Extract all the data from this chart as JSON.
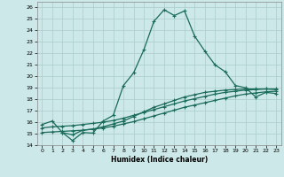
{
  "xlabel": "Humidex (Indice chaleur)",
  "background_color": "#cce8e8",
  "grid_color": "#aacccc",
  "line_color": "#1a6b5a",
  "xlim": [
    -0.5,
    23.5
  ],
  "ylim": [
    14,
    26.5
  ],
  "xticks": [
    0,
    1,
    2,
    3,
    4,
    5,
    6,
    7,
    8,
    9,
    10,
    11,
    12,
    13,
    14,
    15,
    16,
    17,
    18,
    19,
    20,
    21,
    22,
    23
  ],
  "yticks": [
    14,
    15,
    16,
    17,
    18,
    19,
    20,
    21,
    22,
    23,
    24,
    25,
    26
  ],
  "line1_x": [
    0,
    1,
    2,
    3,
    4,
    5,
    6,
    7,
    8,
    9,
    10,
    11,
    12,
    13,
    14,
    15,
    16,
    17,
    18,
    19,
    20,
    21,
    22,
    23
  ],
  "line1_y": [
    15.8,
    16.1,
    15.1,
    14.4,
    15.1,
    15.05,
    16.1,
    16.6,
    19.2,
    20.3,
    22.3,
    24.8,
    25.8,
    25.3,
    25.7,
    23.5,
    22.2,
    21.0,
    20.4,
    19.2,
    19.0,
    18.2,
    18.6,
    18.5
  ],
  "line2_x": [
    2,
    3,
    4,
    5,
    6,
    7,
    8,
    9,
    10,
    11,
    12,
    13,
    14,
    15,
    16,
    17,
    18,
    19,
    20,
    21,
    22,
    23
  ],
  "line2_y": [
    15.1,
    14.9,
    15.3,
    15.4,
    15.6,
    15.85,
    16.1,
    16.5,
    16.9,
    17.3,
    17.6,
    17.9,
    18.2,
    18.4,
    18.6,
    18.7,
    18.8,
    18.85,
    18.9,
    18.9,
    18.9,
    18.85
  ],
  "line3_x": [
    0,
    1,
    2,
    3,
    4,
    5,
    6,
    7,
    8,
    9,
    10,
    11,
    12,
    13,
    14,
    15,
    16,
    17,
    18,
    19,
    20,
    21,
    22,
    23
  ],
  "line3_y": [
    15.5,
    15.6,
    15.65,
    15.7,
    15.8,
    15.9,
    16.0,
    16.15,
    16.35,
    16.6,
    16.85,
    17.1,
    17.35,
    17.6,
    17.85,
    18.05,
    18.25,
    18.45,
    18.6,
    18.7,
    18.8,
    18.85,
    18.9,
    18.9
  ],
  "line4_x": [
    0,
    1,
    2,
    3,
    4,
    5,
    6,
    7,
    8,
    9,
    10,
    11,
    12,
    13,
    14,
    15,
    16,
    17,
    18,
    19,
    20,
    21,
    22,
    23
  ],
  "line4_y": [
    15.1,
    15.15,
    15.2,
    15.25,
    15.3,
    15.4,
    15.5,
    15.65,
    15.85,
    16.05,
    16.3,
    16.55,
    16.8,
    17.05,
    17.3,
    17.5,
    17.7,
    17.9,
    18.1,
    18.3,
    18.45,
    18.55,
    18.65,
    18.7
  ]
}
